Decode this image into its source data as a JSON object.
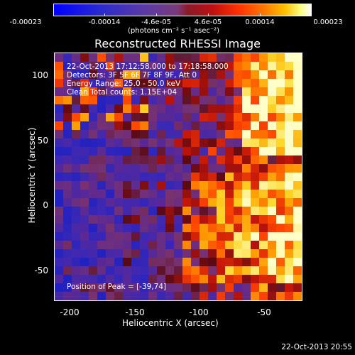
{
  "colorbar": {
    "tick_labels": [
      "-0.00023",
      "-0.00014",
      "-4.6e-05",
      "4.6e-05",
      "0.00014",
      "0.00023"
    ],
    "units": "(photons cm⁻² s⁻¹ asec⁻²)"
  },
  "title": "Reconstructed RHESSI Image",
  "info": {
    "time_range": "22-Oct-2013 17:12:58.000 to 17:18:58.000",
    "detectors": "Detectors: 3F 5F 6F 7F 8F 9F, Att 0",
    "energy": "Energy Range: 25.0 - 50.0 keV",
    "clean": "Clean     Total counts: 1.15E+04",
    "peak": "Position of Peak = [-39,74]"
  },
  "axes": {
    "xlabel": "Heliocentric X (arcsec)",
    "ylabel": "Heliocentric Y (arcsec)",
    "x_ticks": [
      "-200",
      "-150",
      "-100",
      "-50"
    ],
    "y_ticks": [
      "100",
      "50",
      "0",
      "-50"
    ]
  },
  "footer": "22-Oct-2013 20:55"
}
